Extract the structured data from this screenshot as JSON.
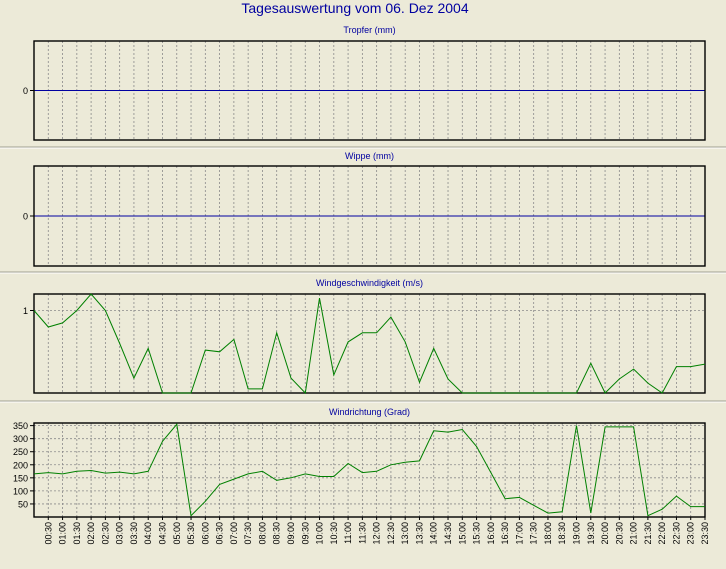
{
  "page_title": "Tagesauswertung vom 06. Dez 2004",
  "colors": {
    "background": "#ecead8",
    "title": "#0000a0",
    "zero_line": "#0000a0",
    "series": "#008000",
    "grid": "#8a8a8a",
    "frame": "#000000"
  },
  "time_labels": [
    "00:30",
    "01:00",
    "01:30",
    "02:00",
    "02:30",
    "03:00",
    "03:30",
    "04:00",
    "04:30",
    "05:00",
    "05:30",
    "06:00",
    "06:30",
    "07:00",
    "07:30",
    "08:00",
    "08:30",
    "09:00",
    "09:30",
    "10:00",
    "10:30",
    "11:00",
    "11:30",
    "12:00",
    "12:30",
    "13:00",
    "13:30",
    "14:00",
    "14:30",
    "15:00",
    "15:30",
    "16:00",
    "16:30",
    "17:00",
    "17:30",
    "18:00",
    "18:30",
    "19:00",
    "19:30",
    "20:00",
    "20:30",
    "21:00",
    "21:30",
    "22:00",
    "22:30",
    "23:00",
    "23:30"
  ],
  "chart_data": [
    {
      "type": "line",
      "title": "Tropfer (mm)",
      "yticks": [
        0
      ],
      "ylim": [
        -1,
        1
      ],
      "grid": true,
      "series": [
        {
          "values": [
            0,
            0,
            0,
            0,
            0,
            0,
            0,
            0,
            0,
            0,
            0,
            0,
            0,
            0,
            0,
            0,
            0,
            0,
            0,
            0,
            0,
            0,
            0,
            0,
            0,
            0,
            0,
            0,
            0,
            0,
            0,
            0,
            0,
            0,
            0,
            0,
            0,
            0,
            0,
            0,
            0,
            0,
            0,
            0,
            0,
            0,
            0,
            0
          ]
        }
      ]
    },
    {
      "type": "line",
      "title": "Wippe (mm)",
      "yticks": [
        0
      ],
      "ylim": [
        -1,
        1
      ],
      "grid": true,
      "series": [
        {
          "values": [
            0,
            0,
            0,
            0,
            0,
            0,
            0,
            0,
            0,
            0,
            0,
            0,
            0,
            0,
            0,
            0,
            0,
            0,
            0,
            0,
            0,
            0,
            0,
            0,
            0,
            0,
            0,
            0,
            0,
            0,
            0,
            0,
            0,
            0,
            0,
            0,
            0,
            0,
            0,
            0,
            0,
            0,
            0,
            0,
            0,
            0,
            0,
            0
          ]
        }
      ]
    },
    {
      "type": "line",
      "title": "Windgeschwindigkeit (m/s)",
      "yticks": [
        1
      ],
      "ylim": [
        0,
        1.2
      ],
      "grid": true,
      "series": [
        {
          "values": [
            1.0,
            0.8,
            0.85,
            1.0,
            1.2,
            1.0,
            0.6,
            0.18,
            0.54,
            0,
            0,
            0,
            0.52,
            0.5,
            0.65,
            0.05,
            0.05,
            0.73,
            0.18,
            0,
            1.15,
            0.22,
            0.62,
            0.73,
            0.73,
            0.92,
            0.62,
            0.13,
            0.54,
            0.17,
            0,
            0,
            0,
            0,
            0,
            0,
            0,
            0,
            0,
            0.36,
            0,
            0.17,
            0.29,
            0.12,
            0,
            0.32,
            0.32,
            0.35
          ]
        }
      ]
    },
    {
      "type": "line",
      "title": "Windrichtung (Grad)",
      "yticks": [
        50,
        100,
        150,
        200,
        250,
        300,
        350
      ],
      "ylim": [
        0,
        360
      ],
      "grid": true,
      "series": [
        {
          "values": [
            165,
            170,
            165,
            175,
            178,
            168,
            172,
            165,
            175,
            290,
            355,
            5,
            60,
            125,
            145,
            165,
            175,
            140,
            150,
            165,
            155,
            155,
            205,
            170,
            175,
            200,
            210,
            215,
            330,
            325,
            335,
            270,
            170,
            70,
            75,
            45,
            15,
            20,
            350,
            15,
            345,
            345,
            345,
            5,
            30,
            80,
            40,
            40
          ]
        }
      ]
    }
  ]
}
